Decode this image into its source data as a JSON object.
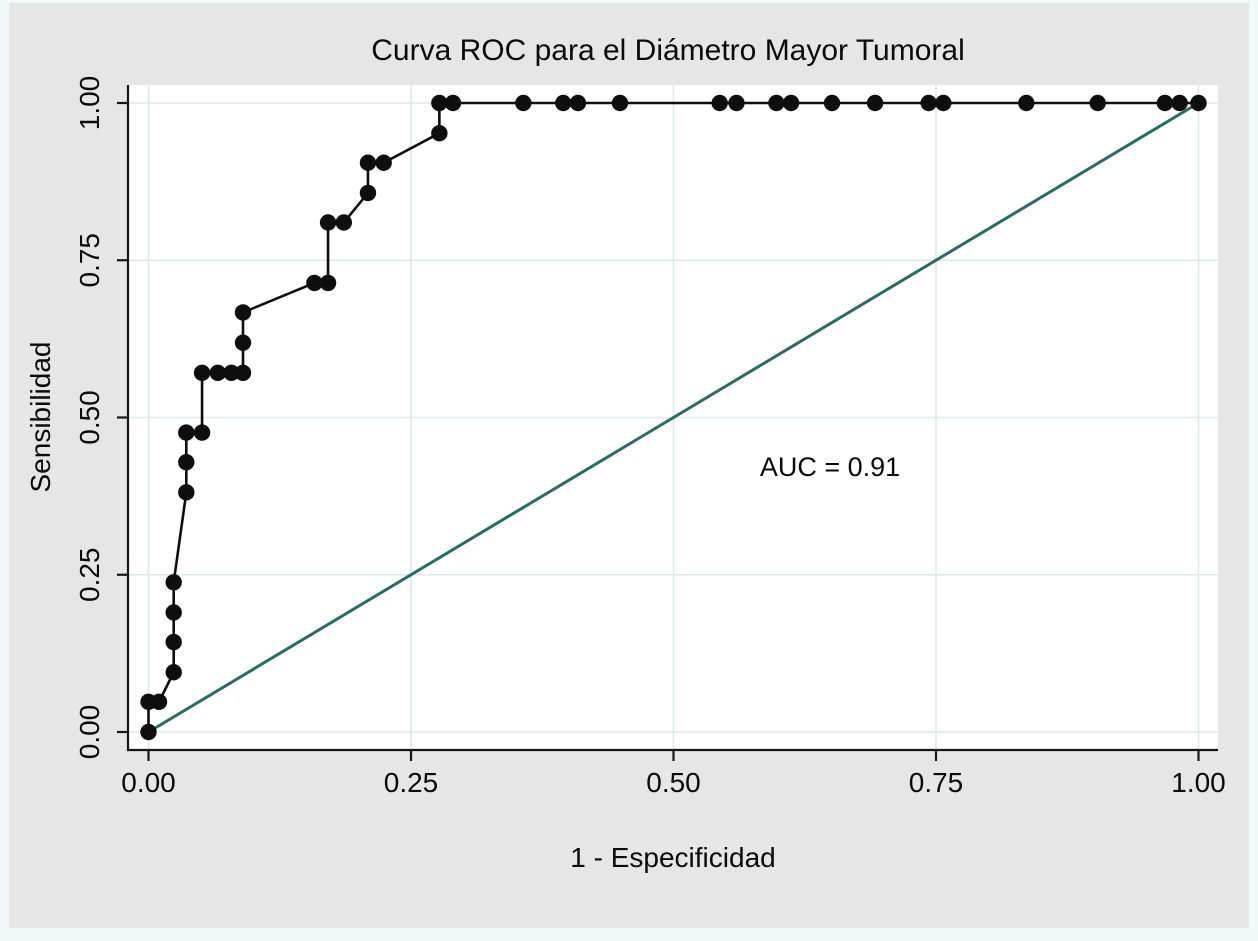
{
  "figure": {
    "title": "Curva ROC para el Diámetro Mayor Tumoral",
    "auc_text": "AUC = 0.91"
  },
  "chart_data": {
    "type": "line",
    "title": "Curva ROC para el Diámetro Mayor Tumoral",
    "xlabel": "1 - Especificidad",
    "ylabel": "Sensibilidad",
    "xlim": [
      0,
      1
    ],
    "ylim": [
      0,
      1
    ],
    "grid": true,
    "legend": "none",
    "x_ticks": [
      0,
      0.25,
      0.5,
      0.75,
      1
    ],
    "x_tick_labels": [
      "0.00",
      "0.25",
      "0.50",
      "0.75",
      "1.00"
    ],
    "y_ticks": [
      0,
      0.25,
      0.5,
      0.75,
      1
    ],
    "y_tick_labels": [
      "0.00",
      "0.25",
      "0.50",
      "0.75",
      "1.00"
    ],
    "annotations": [
      {
        "text": "AUC = 0.91",
        "x": 0.649,
        "y": 0.421
      }
    ],
    "series": [
      {
        "name": "ROC curve (Diámetro Mayor Tumoral)",
        "color": "#0e0e0e",
        "marker": "circle",
        "points": [
          [
            0.0,
            0.0
          ],
          [
            0.0,
            0.048
          ],
          [
            0.01,
            0.048
          ],
          [
            0.024,
            0.095
          ],
          [
            0.024,
            0.143
          ],
          [
            0.024,
            0.19
          ],
          [
            0.024,
            0.238
          ],
          [
            0.036,
            0.381
          ],
          [
            0.036,
            0.429
          ],
          [
            0.036,
            0.476
          ],
          [
            0.051,
            0.476
          ],
          [
            0.051,
            0.571
          ],
          [
            0.066,
            0.571
          ],
          [
            0.079,
            0.571
          ],
          [
            0.09,
            0.571
          ],
          [
            0.09,
            0.619
          ],
          [
            0.09,
            0.667
          ],
          [
            0.158,
            0.714
          ],
          [
            0.171,
            0.714
          ],
          [
            0.171,
            0.81
          ],
          [
            0.186,
            0.81
          ],
          [
            0.209,
            0.857
          ],
          [
            0.209,
            0.905
          ],
          [
            0.224,
            0.905
          ],
          [
            0.277,
            0.952
          ],
          [
            0.277,
            1.0
          ],
          [
            0.29,
            1.0
          ],
          [
            0.357,
            1.0
          ],
          [
            0.395,
            1.0
          ],
          [
            0.409,
            1.0
          ],
          [
            0.449,
            1.0
          ],
          [
            0.544,
            1.0
          ],
          [
            0.56,
            1.0
          ],
          [
            0.598,
            1.0
          ],
          [
            0.612,
            1.0
          ],
          [
            0.651,
            1.0
          ],
          [
            0.692,
            1.0
          ],
          [
            0.743,
            1.0
          ],
          [
            0.757,
            1.0
          ],
          [
            0.836,
            1.0
          ],
          [
            0.904,
            1.0
          ],
          [
            0.968,
            1.0
          ],
          [
            0.982,
            1.0
          ],
          [
            1.0,
            1.0
          ]
        ]
      },
      {
        "name": "reference diagonal",
        "color": "#2a6b63",
        "marker": "none",
        "points": [
          [
            0,
            0
          ],
          [
            1,
            1
          ]
        ]
      }
    ],
    "auc": 0.91
  },
  "colors": {
    "outer_background": "#e6e6e7",
    "edge_strip": "#f3f8f8",
    "plot_background": "#ffffff",
    "gridline": "#dde9ea",
    "axis": "#161616",
    "curve": "#0e0e0e",
    "reference_line": "#2a6b63",
    "text": "#0a0a0a"
  }
}
